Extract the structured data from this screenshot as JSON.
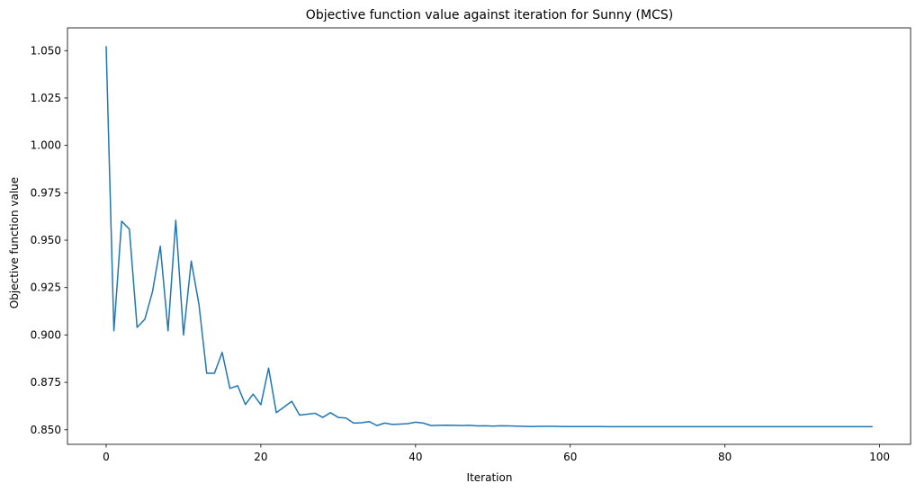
{
  "chart_data": {
    "type": "line",
    "title": "Objective function value against iteration for Sunny (MCS)",
    "xlabel": "Iteration",
    "ylabel": "Objective function value",
    "xlim": [
      -5,
      104
    ],
    "ylim": [
      0.8423,
      1.062
    ],
    "xticks": [
      0,
      20,
      40,
      60,
      80,
      100
    ],
    "xtick_labels": [
      "0",
      "20",
      "40",
      "60",
      "80",
      "100"
    ],
    "yticks": [
      0.85,
      0.875,
      0.9,
      0.925,
      0.95,
      0.975,
      1.0,
      1.025,
      1.05
    ],
    "ytick_labels": [
      "0.850",
      "0.875",
      "0.900",
      "0.925",
      "0.950",
      "0.975",
      "1.000",
      "1.025",
      "1.050"
    ],
    "grid": false,
    "series": [
      {
        "color": "#1f77b4",
        "x": [
          0,
          1,
          2,
          3,
          4,
          5,
          6,
          7,
          8,
          9,
          10,
          11,
          12,
          13,
          14,
          15,
          16,
          17,
          18,
          19,
          20,
          21,
          22,
          23,
          24,
          25,
          26,
          27,
          28,
          29,
          30,
          31,
          32,
          33,
          34,
          35,
          36,
          37,
          38,
          39,
          40,
          41,
          42,
          43,
          44,
          45,
          46,
          47,
          48,
          49,
          50,
          51,
          52,
          53,
          54,
          55,
          56,
          57,
          58,
          59,
          60,
          61,
          62,
          63,
          64,
          65,
          66,
          67,
          68,
          69,
          70,
          71,
          72,
          73,
          74,
          75,
          76,
          77,
          78,
          79,
          80,
          81,
          82,
          83,
          84,
          85,
          86,
          87,
          88,
          89,
          90,
          91,
          92,
          93,
          94,
          95,
          96,
          97,
          98,
          99
        ],
        "y": [
          1.052,
          0.9022,
          0.96,
          0.9558,
          0.904,
          0.9083,
          0.923,
          0.9468,
          0.9022,
          0.9605,
          0.9,
          0.939,
          0.916,
          0.8798,
          0.8798,
          0.8908,
          0.8718,
          0.8732,
          0.8633,
          0.8688,
          0.8632,
          0.8825,
          0.859,
          0.862,
          0.865,
          0.8577,
          0.8582,
          0.8587,
          0.8565,
          0.859,
          0.8565,
          0.8562,
          0.8535,
          0.8537,
          0.8543,
          0.8522,
          0.8535,
          0.8528,
          0.853,
          0.8532,
          0.854,
          0.8535,
          0.8522,
          0.8523,
          0.8524,
          0.8523,
          0.8522,
          0.8523,
          0.852,
          0.8521,
          0.8519,
          0.8521,
          0.852,
          0.8519,
          0.8518,
          0.8517,
          0.8518,
          0.8518,
          0.8518,
          0.8517,
          0.8517,
          0.8517,
          0.8517,
          0.8517,
          0.8517,
          0.8516,
          0.8516,
          0.8516,
          0.8516,
          0.8516,
          0.8516,
          0.8516,
          0.8516,
          0.8516,
          0.8516,
          0.8516,
          0.8516,
          0.8516,
          0.8516,
          0.8516,
          0.8516,
          0.8516,
          0.8516,
          0.8516,
          0.8516,
          0.8516,
          0.8516,
          0.8516,
          0.8516,
          0.8516,
          0.8516,
          0.8516,
          0.8516,
          0.8516,
          0.8516,
          0.8516,
          0.8516,
          0.8516,
          0.8516,
          0.8516
        ]
      }
    ]
  }
}
